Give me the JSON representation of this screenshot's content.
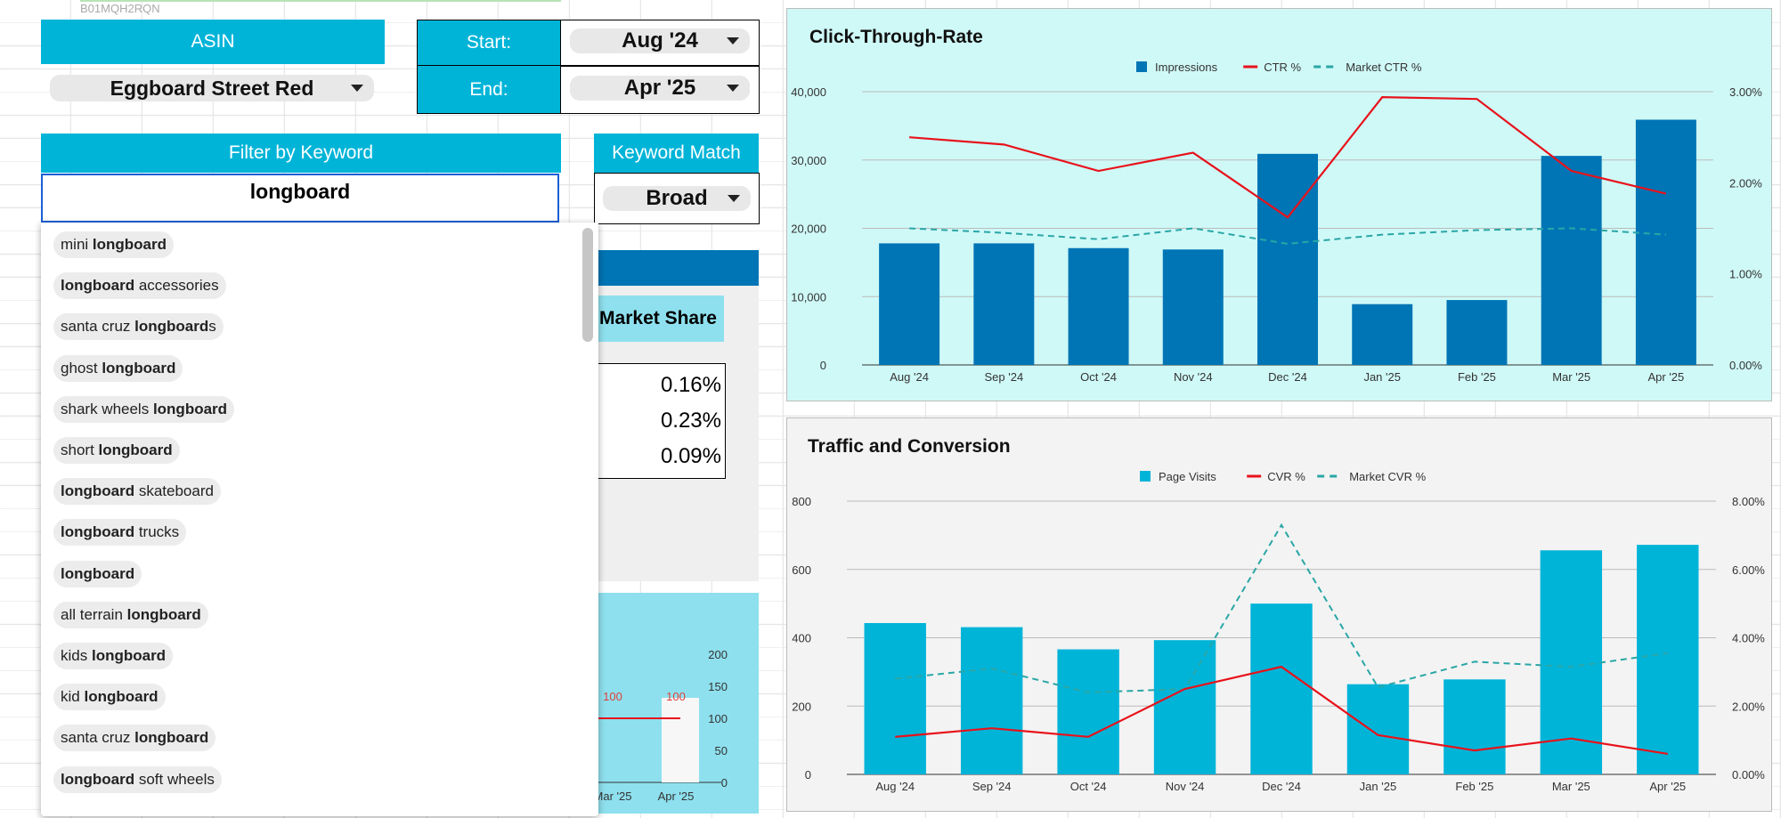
{
  "asin_code": "B01MQH2RQN",
  "asin_header": "ASIN",
  "product_select": "Eggboard Street Red",
  "start_label": "Start:",
  "start_value": "Aug '24",
  "end_label": "End:",
  "end_value": "Apr '25",
  "filter_header": "Filter by Keyword",
  "keyword_input": "longboard",
  "match_header": "Keyword Match",
  "match_value": "Broad",
  "market_share_header": "Market Share",
  "market_share_values": [
    "0.16%",
    "0.23%",
    "0.09%"
  ],
  "suggestions": [
    {
      "pre": "mini ",
      "bold": "longboard",
      "post": ""
    },
    {
      "pre": "",
      "bold": "longboard",
      "post": " accessories"
    },
    {
      "pre": "santa cruz ",
      "bold": "longboard",
      "post": "s"
    },
    {
      "pre": "ghost ",
      "bold": "longboard",
      "post": ""
    },
    {
      "pre": "shark wheels ",
      "bold": "longboard",
      "post": ""
    },
    {
      "pre": "short ",
      "bold": "longboard",
      "post": ""
    },
    {
      "pre": "",
      "bold": "longboard",
      "post": " skateboard"
    },
    {
      "pre": "",
      "bold": "longboard",
      "post": " trucks"
    },
    {
      "pre": "",
      "bold": "longboard",
      "post": ""
    },
    {
      "pre": "all terrain ",
      "bold": "longboard",
      "post": ""
    },
    {
      "pre": "kids ",
      "bold": "longboard",
      "post": ""
    },
    {
      "pre": "kid ",
      "bold": "longboard",
      "post": ""
    },
    {
      "pre": "santa cruz ",
      "bold": "longboard",
      "post": ""
    },
    {
      "pre": "",
      "bold": "longboard",
      "post": " soft wheels"
    }
  ],
  "colors": {
    "header": "#00b4d8",
    "ctr_bg": "#cff9f7",
    "impressions": "#0075b5",
    "visits": "#00b4d8",
    "red": "#e8121b",
    "market": "#2aa6a6"
  },
  "chart_data": [
    {
      "type": "bar",
      "title": "Click-Through-Rate",
      "categories": [
        "Aug '24",
        "Sep '24",
        "Oct '24",
        "Nov '24",
        "Dec '24",
        "Jan '25",
        "Feb '25",
        "Mar '25",
        "Apr '25"
      ],
      "legend": [
        "Impressions",
        "CTR %",
        "Market CTR %"
      ],
      "series": [
        {
          "name": "Impressions",
          "axis": "left",
          "values": [
            17800,
            17800,
            17100,
            16900,
            30900,
            8900,
            9500,
            30600,
            35900
          ]
        },
        {
          "name": "CTR %",
          "axis": "right",
          "values": [
            2.5,
            2.42,
            2.13,
            2.33,
            1.62,
            2.94,
            2.92,
            2.13,
            1.88
          ]
        },
        {
          "name": "Market CTR %",
          "axis": "right",
          "values": [
            1.5,
            1.45,
            1.38,
            1.5,
            1.33,
            1.43,
            1.48,
            1.5,
            1.43
          ]
        }
      ],
      "ylim": [
        0,
        40000
      ],
      "y2lim": [
        0,
        3
      ],
      "yticks": [
        "0",
        "10,000",
        "20,000",
        "30,000",
        "40,000"
      ],
      "y2ticks": [
        "0.00%",
        "1.00%",
        "2.00%",
        "3.00%"
      ]
    },
    {
      "type": "bar",
      "title": "Traffic and Conversion",
      "categories": [
        "Aug '24",
        "Sep '24",
        "Oct '24",
        "Nov '24",
        "Dec '24",
        "Jan '25",
        "Feb '25",
        "Mar '25",
        "Apr '25"
      ],
      "legend": [
        "Page Visits",
        "CVR %",
        "Market CVR %"
      ],
      "series": [
        {
          "name": "Page Visits",
          "axis": "left",
          "values": [
            443,
            431,
            366,
            393,
            500,
            264,
            278,
            656,
            672
          ]
        },
        {
          "name": "CVR %",
          "axis": "right",
          "values": [
            1.1,
            1.35,
            1.1,
            2.5,
            3.15,
            1.15,
            0.7,
            1.05,
            0.6
          ]
        },
        {
          "name": "Market CVR %",
          "axis": "right",
          "values": [
            2.8,
            3.1,
            2.4,
            2.5,
            7.3,
            2.55,
            3.3,
            3.15,
            3.55
          ]
        }
      ],
      "ylim": [
        0,
        800
      ],
      "y2lim": [
        0,
        8
      ],
      "yticks": [
        "0",
        "200",
        "400",
        "600",
        "800"
      ],
      "y2ticks": [
        "0.00%",
        "2.00%",
        "4.00%",
        "6.00%",
        "8.00%"
      ]
    },
    {
      "type": "bar",
      "title": "",
      "categories": [
        "Mar '25",
        "Apr '25"
      ],
      "values": [
        100,
        100
      ],
      "data_labels": [
        "100",
        "100"
      ],
      "ylim": [
        0,
        200
      ],
      "yticks": [
        "0",
        "50",
        "100",
        "150",
        "200"
      ]
    }
  ]
}
